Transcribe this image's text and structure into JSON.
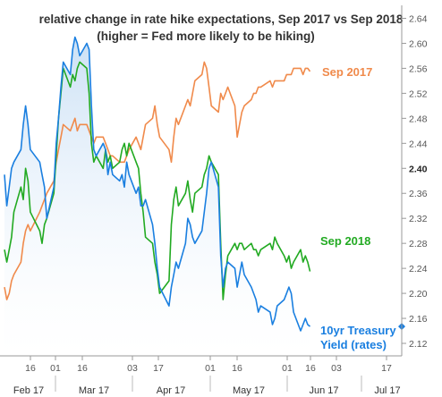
{
  "chart_data": {
    "type": "line",
    "title": "relative change in rate hike expectations, Sep 2017 vs Sep 2018",
    "subtitle": "(higher = Fed more likely to be hiking)",
    "x_day_ticks": [
      "16",
      "01",
      "16",
      "03",
      "17",
      "01",
      "16",
      "01",
      "16",
      "03",
      "17"
    ],
    "x_month_labels": [
      "Feb 17",
      "Mar 17",
      "Apr 17",
      "May 17",
      "Jun 17",
      "Jul 17"
    ],
    "y_ticks": [
      "2.64",
      "2.60",
      "2.56",
      "2.52",
      "2.48",
      "2.44",
      "2.40",
      "2.36",
      "2.32",
      "2.28",
      "2.24",
      "2.20",
      "2.16",
      "2.12"
    ],
    "y_highlight_tick": "2.40",
    "ylim": [
      2.1,
      2.655
    ],
    "x_range": [
      "2017-02-06",
      "2017-07-25"
    ],
    "grid": false,
    "colors": {
      "sep2017": "#f08a4b",
      "sep2018": "#22aa22",
      "treasury": "#1a7fe0",
      "area_top": "#c9dff5"
    },
    "series": [
      {
        "name": "Sep 2017",
        "label_lines": [
          "Sep 2017"
        ],
        "x": [
          "2017-02-06",
          "2017-02-07",
          "2017-02-08",
          "2017-02-09",
          "2017-02-10",
          "2017-02-13",
          "2017-02-14",
          "2017-02-15",
          "2017-02-16",
          "2017-02-17",
          "2017-02-21",
          "2017-02-22",
          "2017-02-23",
          "2017-02-24",
          "2017-02-27",
          "2017-02-28",
          "2017-03-01",
          "2017-03-02",
          "2017-03-03",
          "2017-03-06",
          "2017-03-07",
          "2017-03-08",
          "2017-03-09",
          "2017-03-10",
          "2017-03-13",
          "2017-03-14",
          "2017-03-15",
          "2017-03-16",
          "2017-03-17",
          "2017-03-20",
          "2017-03-21",
          "2017-03-22",
          "2017-03-23",
          "2017-03-24",
          "2017-03-27",
          "2017-03-28",
          "2017-03-29",
          "2017-03-30",
          "2017-03-31",
          "2017-04-03",
          "2017-04-04",
          "2017-04-05",
          "2017-04-06",
          "2017-04-07",
          "2017-04-10",
          "2017-04-11",
          "2017-04-12",
          "2017-04-13",
          "2017-04-17",
          "2017-04-18",
          "2017-04-19",
          "2017-04-20",
          "2017-04-21",
          "2017-04-24",
          "2017-04-25",
          "2017-04-26",
          "2017-04-27",
          "2017-04-28",
          "2017-05-01",
          "2017-05-02",
          "2017-05-03",
          "2017-05-04",
          "2017-05-05",
          "2017-05-08",
          "2017-05-09",
          "2017-05-10",
          "2017-05-11",
          "2017-05-12",
          "2017-05-15",
          "2017-05-16",
          "2017-05-17",
          "2017-05-18",
          "2017-05-19",
          "2017-05-22",
          "2017-05-23",
          "2017-05-24",
          "2017-05-25",
          "2017-05-26",
          "2017-05-30",
          "2017-05-31",
          "2017-06-01",
          "2017-06-02",
          "2017-06-05",
          "2017-06-06",
          "2017-06-07",
          "2017-06-08",
          "2017-06-09",
          "2017-06-12",
          "2017-06-13",
          "2017-06-14",
          "2017-06-15",
          "2017-06-16"
        ],
        "values": [
          2.21,
          2.19,
          2.2,
          2.22,
          2.23,
          2.25,
          2.28,
          2.3,
          2.31,
          2.3,
          2.33,
          2.34,
          2.35,
          2.36,
          2.38,
          2.41,
          2.43,
          2.45,
          2.47,
          2.46,
          2.47,
          2.48,
          2.46,
          2.47,
          2.47,
          2.46,
          2.45,
          2.44,
          2.45,
          2.45,
          2.44,
          2.43,
          2.42,
          2.42,
          2.41,
          2.41,
          2.41,
          2.42,
          2.43,
          2.45,
          2.44,
          2.43,
          2.45,
          2.47,
          2.48,
          2.5,
          2.47,
          2.45,
          2.43,
          2.41,
          2.45,
          2.48,
          2.47,
          2.5,
          2.51,
          2.5,
          2.52,
          2.54,
          2.55,
          2.57,
          2.56,
          2.53,
          2.5,
          2.49,
          2.52,
          2.51,
          2.52,
          2.53,
          2.5,
          2.45,
          2.47,
          2.49,
          2.5,
          2.51,
          2.52,
          2.52,
          2.53,
          2.53,
          2.54,
          2.53,
          2.54,
          2.54,
          2.54,
          2.55,
          2.55,
          2.55,
          2.56,
          2.56,
          2.55,
          2.56,
          2.56,
          2.555
        ]
      },
      {
        "name": "Sep 2018",
        "label_lines": [
          "Sep 2018"
        ],
        "x": [
          "2017-02-06",
          "2017-02-07",
          "2017-02-08",
          "2017-02-09",
          "2017-02-10",
          "2017-02-13",
          "2017-02-14",
          "2017-02-15",
          "2017-02-16",
          "2017-02-17",
          "2017-02-21",
          "2017-02-22",
          "2017-02-23",
          "2017-02-24",
          "2017-02-27",
          "2017-02-28",
          "2017-03-01",
          "2017-03-02",
          "2017-03-03",
          "2017-03-06",
          "2017-03-07",
          "2017-03-08",
          "2017-03-09",
          "2017-03-10",
          "2017-03-13",
          "2017-03-14",
          "2017-03-15",
          "2017-03-16",
          "2017-03-17",
          "2017-03-20",
          "2017-03-21",
          "2017-03-22",
          "2017-03-23",
          "2017-03-24",
          "2017-03-27",
          "2017-03-28",
          "2017-03-29",
          "2017-03-30",
          "2017-03-31",
          "2017-04-03",
          "2017-04-04",
          "2017-04-05",
          "2017-04-06",
          "2017-04-07",
          "2017-04-10",
          "2017-04-11",
          "2017-04-12",
          "2017-04-13",
          "2017-04-17",
          "2017-04-18",
          "2017-04-19",
          "2017-04-20",
          "2017-04-21",
          "2017-04-24",
          "2017-04-25",
          "2017-04-26",
          "2017-04-27",
          "2017-04-28",
          "2017-05-01",
          "2017-05-02",
          "2017-05-03",
          "2017-05-04",
          "2017-05-05",
          "2017-05-08",
          "2017-05-09",
          "2017-05-10",
          "2017-05-11",
          "2017-05-12",
          "2017-05-15",
          "2017-05-16",
          "2017-05-17",
          "2017-05-18",
          "2017-05-19",
          "2017-05-22",
          "2017-05-23",
          "2017-05-24",
          "2017-05-25",
          "2017-05-26",
          "2017-05-30",
          "2017-05-31",
          "2017-06-01",
          "2017-06-02",
          "2017-06-05",
          "2017-06-06",
          "2017-06-07",
          "2017-06-08",
          "2017-06-09",
          "2017-06-12",
          "2017-06-13",
          "2017-06-14",
          "2017-06-15",
          "2017-06-16"
        ],
        "values": [
          2.27,
          2.25,
          2.27,
          2.29,
          2.33,
          2.37,
          2.35,
          2.4,
          2.38,
          2.33,
          2.3,
          2.28,
          2.31,
          2.32,
          2.36,
          2.42,
          2.48,
          2.52,
          2.56,
          2.53,
          2.55,
          2.54,
          2.56,
          2.57,
          2.56,
          2.52,
          2.44,
          2.41,
          2.42,
          2.4,
          2.43,
          2.41,
          2.42,
          2.4,
          2.41,
          2.43,
          2.44,
          2.42,
          2.44,
          2.41,
          2.4,
          2.36,
          2.33,
          2.29,
          2.28,
          2.25,
          2.23,
          2.2,
          2.22,
          2.31,
          2.35,
          2.37,
          2.34,
          2.36,
          2.38,
          2.35,
          2.33,
          2.36,
          2.37,
          2.39,
          2.4,
          2.42,
          2.41,
          2.39,
          2.28,
          2.19,
          2.23,
          2.26,
          2.28,
          2.27,
          2.28,
          2.28,
          2.27,
          2.28,
          2.27,
          2.27,
          2.26,
          2.27,
          2.28,
          2.27,
          2.29,
          2.28,
          2.26,
          2.25,
          2.26,
          2.24,
          2.25,
          2.27,
          2.25,
          2.26,
          2.25,
          2.235
        ]
      },
      {
        "name": "10yr Treasury Yield (rates)",
        "label_lines": [
          "10yr Treasury",
          "Yield (rates)"
        ],
        "x": [
          "2017-02-06",
          "2017-02-07",
          "2017-02-08",
          "2017-02-09",
          "2017-02-10",
          "2017-02-13",
          "2017-02-14",
          "2017-02-15",
          "2017-02-16",
          "2017-02-17",
          "2017-02-21",
          "2017-02-22",
          "2017-02-23",
          "2017-02-24",
          "2017-02-27",
          "2017-02-28",
          "2017-03-01",
          "2017-03-02",
          "2017-03-03",
          "2017-03-06",
          "2017-03-07",
          "2017-03-08",
          "2017-03-09",
          "2017-03-10",
          "2017-03-13",
          "2017-03-14",
          "2017-03-15",
          "2017-03-16",
          "2017-03-17",
          "2017-03-20",
          "2017-03-21",
          "2017-03-22",
          "2017-03-23",
          "2017-03-24",
          "2017-03-27",
          "2017-03-28",
          "2017-03-29",
          "2017-03-30",
          "2017-03-31",
          "2017-04-03",
          "2017-04-04",
          "2017-04-05",
          "2017-04-06",
          "2017-04-07",
          "2017-04-10",
          "2017-04-11",
          "2017-04-12",
          "2017-04-13",
          "2017-04-17",
          "2017-04-18",
          "2017-04-19",
          "2017-04-20",
          "2017-04-21",
          "2017-04-24",
          "2017-04-25",
          "2017-04-26",
          "2017-04-27",
          "2017-04-28",
          "2017-05-01",
          "2017-05-02",
          "2017-05-03",
          "2017-05-04",
          "2017-05-05",
          "2017-05-08",
          "2017-05-09",
          "2017-05-10",
          "2017-05-11",
          "2017-05-12",
          "2017-05-15",
          "2017-05-16",
          "2017-05-17",
          "2017-05-18",
          "2017-05-19",
          "2017-05-22",
          "2017-05-23",
          "2017-05-24",
          "2017-05-25",
          "2017-05-26",
          "2017-05-30",
          "2017-05-31",
          "2017-06-01",
          "2017-06-02",
          "2017-06-05",
          "2017-06-06",
          "2017-06-07",
          "2017-06-08",
          "2017-06-09",
          "2017-06-12",
          "2017-06-13",
          "2017-06-14",
          "2017-06-15",
          "2017-06-16"
        ],
        "values": [
          2.39,
          2.34,
          2.37,
          2.4,
          2.41,
          2.43,
          2.47,
          2.5,
          2.47,
          2.43,
          2.41,
          2.39,
          2.37,
          2.32,
          2.37,
          2.44,
          2.48,
          2.53,
          2.57,
          2.55,
          2.59,
          2.61,
          2.6,
          2.58,
          2.6,
          2.59,
          2.5,
          2.43,
          2.42,
          2.44,
          2.43,
          2.39,
          2.41,
          2.39,
          2.38,
          2.39,
          2.37,
          2.41,
          2.39,
          2.36,
          2.37,
          2.34,
          2.34,
          2.35,
          2.31,
          2.28,
          2.24,
          2.21,
          2.18,
          2.21,
          2.23,
          2.25,
          2.24,
          2.28,
          2.32,
          2.31,
          2.29,
          2.28,
          2.3,
          2.33,
          2.36,
          2.4,
          2.41,
          2.37,
          2.26,
          2.21,
          2.24,
          2.25,
          2.24,
          2.21,
          2.23,
          2.25,
          2.23,
          2.21,
          2.2,
          2.19,
          2.17,
          2.18,
          2.17,
          2.15,
          2.16,
          2.18,
          2.19,
          2.2,
          2.21,
          2.2,
          2.17,
          2.14,
          2.15,
          2.16,
          2.15,
          2.147
        ]
      }
    ]
  }
}
